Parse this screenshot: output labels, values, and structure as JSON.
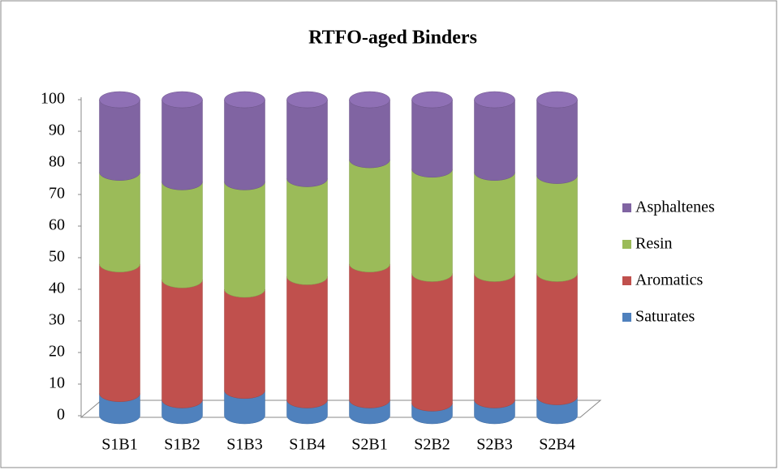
{
  "chart_data": {
    "type": "stacked-cylinder",
    "title": "RTFO-aged Binders",
    "categories": [
      "S1B1",
      "S1B2",
      "S1B3",
      "S1B4",
      "S2B1",
      "S2B2",
      "S2B3",
      "S2B4"
    ],
    "series": [
      {
        "name": "Saturates",
        "color": "#4f81bd",
        "values": [
          7,
          5,
          8,
          5,
          5,
          4,
          5,
          6
        ]
      },
      {
        "name": "Aromatics",
        "color": "#c0504d",
        "values": [
          41,
          38,
          32,
          39,
          43,
          41,
          40,
          39
        ]
      },
      {
        "name": "Resin",
        "color": "#9bbb59",
        "values": [
          29,
          31,
          34,
          31,
          33,
          33,
          32,
          31
        ]
      },
      {
        "name": "Asphaltenes",
        "color": "#8064a2",
        "values": [
          23,
          26,
          26,
          25,
          19,
          22,
          23,
          24
        ]
      }
    ],
    "ylim": [
      0,
      100
    ],
    "yticks": [
      0,
      10,
      20,
      30,
      40,
      50,
      60,
      70,
      80,
      90,
      100
    ]
  }
}
